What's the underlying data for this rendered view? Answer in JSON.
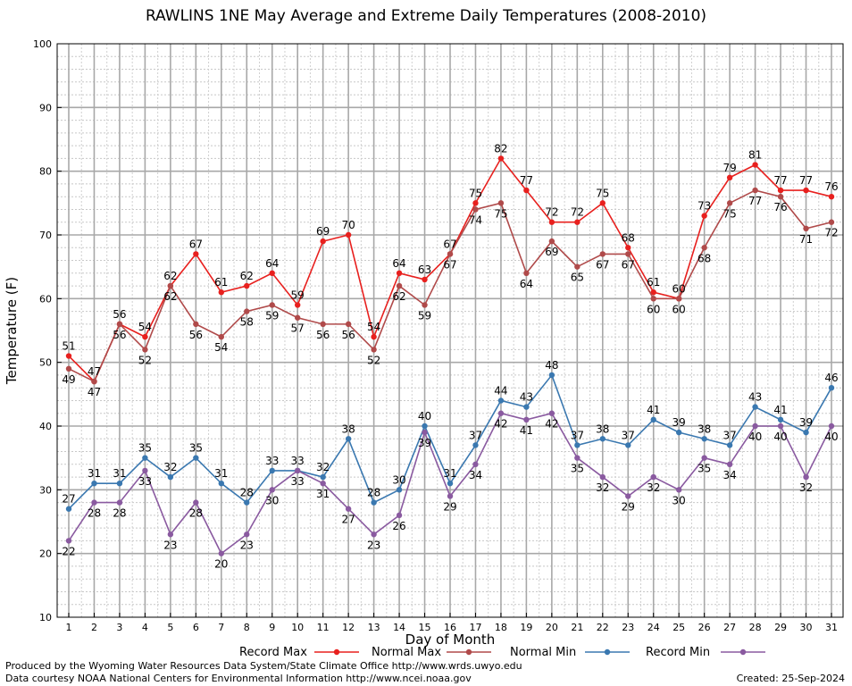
{
  "chart_data": {
    "type": "line",
    "title": "RAWLINS 1NE May Average and Extreme Daily Temperatures (2008-2010)",
    "xlabel": "Day of Month",
    "ylabel": "Temperature (F)",
    "ylim": [
      10,
      100
    ],
    "yticks": [
      10,
      20,
      30,
      40,
      50,
      60,
      70,
      80,
      90,
      100
    ],
    "x": [
      1,
      2,
      3,
      4,
      5,
      6,
      7,
      8,
      9,
      10,
      11,
      12,
      13,
      14,
      15,
      16,
      17,
      18,
      19,
      20,
      21,
      22,
      23,
      24,
      25,
      26,
      27,
      28,
      29,
      30,
      31
    ],
    "grid": true,
    "legend_position": "bottom",
    "series": [
      {
        "name": "Record Max",
        "color": "#e8201e",
        "values": [
          51,
          47,
          56,
          54,
          62,
          67,
          61,
          62,
          64,
          59,
          69,
          70,
          54,
          64,
          63,
          67,
          75,
          82,
          77,
          72,
          72,
          75,
          68,
          61,
          60,
          73,
          79,
          81,
          77,
          77,
          76
        ]
      },
      {
        "name": "Normal Max",
        "color": "#b04a4a",
        "values": [
          49,
          47,
          56,
          52,
          62,
          56,
          54,
          58,
          59,
          57,
          56,
          56,
          52,
          62,
          59,
          67,
          74,
          75,
          64,
          69,
          65,
          67,
          67,
          60,
          60,
          68,
          75,
          77,
          76,
          71,
          72
        ]
      },
      {
        "name": "Normal Min",
        "color": "#3a78b0",
        "values": [
          27,
          31,
          31,
          35,
          32,
          35,
          31,
          28,
          33,
          33,
          32,
          38,
          28,
          30,
          40,
          31,
          37,
          44,
          43,
          48,
          37,
          38,
          37,
          41,
          39,
          38,
          37,
          43,
          41,
          39,
          46
        ]
      },
      {
        "name": "Record Min",
        "color": "#8a5aa0",
        "values": [
          22,
          28,
          28,
          33,
          23,
          28,
          20,
          23,
          30,
          33,
          31,
          27,
          23,
          26,
          39,
          29,
          34,
          42,
          41,
          42,
          35,
          32,
          29,
          32,
          30,
          35,
          34,
          40,
          40,
          32,
          40
        ]
      }
    ]
  },
  "footer": {
    "left_line1": "Produced by the Wyoming Water Resources Data System/State Climate Office http://www.wrds.uwyo.edu",
    "left_line2": "Data courtesy NOAA National Centers for Environmental Information http://www.ncei.noaa.gov",
    "created": "Created:  25-Sep-2024"
  }
}
